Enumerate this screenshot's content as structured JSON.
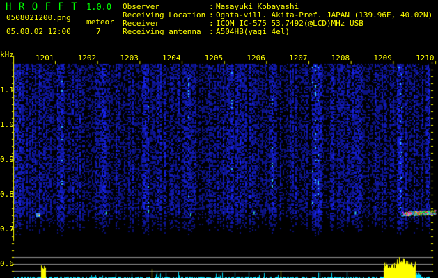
{
  "header": {
    "app_title": "H R O F F T",
    "version": "1.0.0",
    "filename": "0508021200.png",
    "datetime": "05.08.02 12:00",
    "meteor_label": "meteor",
    "meteor_count": "7",
    "info": [
      {
        "label": "Observer",
        "value": "Masayuki Kobayashi"
      },
      {
        "label": "Receiving Location",
        "value": "Ogata-vill. Akita-Pref. JAPAN (139.96E, 40.02N)"
      },
      {
        "label": "Receiver",
        "value": "ICOM IC-575 53.7492(@LCD)MHz USB"
      },
      {
        "label": "Receiving antenna",
        "value": "A504HB(yagi 4el)"
      }
    ]
  },
  "chart_data": {
    "type": "heatmap",
    "ylabel": "kHz",
    "x_tick_labels": [
      "1201",
      "1202",
      "1203",
      "1204",
      "1205",
      "1206",
      "1207",
      "1208",
      "1209",
      "1210"
    ],
    "y_tick_labels": [
      "1.1",
      "1.0",
      "0.9",
      "0.8",
      "0.7",
      "0.6"
    ],
    "y_ticks": [
      1.1,
      1.0,
      0.9,
      0.8,
      0.7,
      0.6
    ],
    "ylim": [
      0.67,
      1.19
    ],
    "xlim_minutes": [
      1200,
      1210
    ],
    "meteor_echoes": [
      {
        "time": 1200.6,
        "freq_khz": 0.74,
        "strength": "medium"
      },
      {
        "time": 1202.2,
        "freq_khz": 0.745,
        "strength": "weak"
      },
      {
        "time": 1203.2,
        "freq_khz": 0.75,
        "strength": "weak"
      },
      {
        "time": 1204.2,
        "freq_khz": 0.74,
        "strength": "weak"
      },
      {
        "time": 1205.7,
        "freq_khz": 0.745,
        "strength": "weak"
      },
      {
        "time": 1208.1,
        "freq_khz": 0.745,
        "strength": "weak"
      },
      {
        "time": 1209.2,
        "freq_khz": 0.745,
        "strength": "strong",
        "duration_min": 0.8
      }
    ],
    "colors": {
      "background": "#000000",
      "noise": "#1020c0",
      "text": "#ffff00",
      "title": "#00ff00",
      "level_bar": "#00e0ff",
      "level_peak": "#ffff00",
      "guide_line": "#909090"
    }
  }
}
